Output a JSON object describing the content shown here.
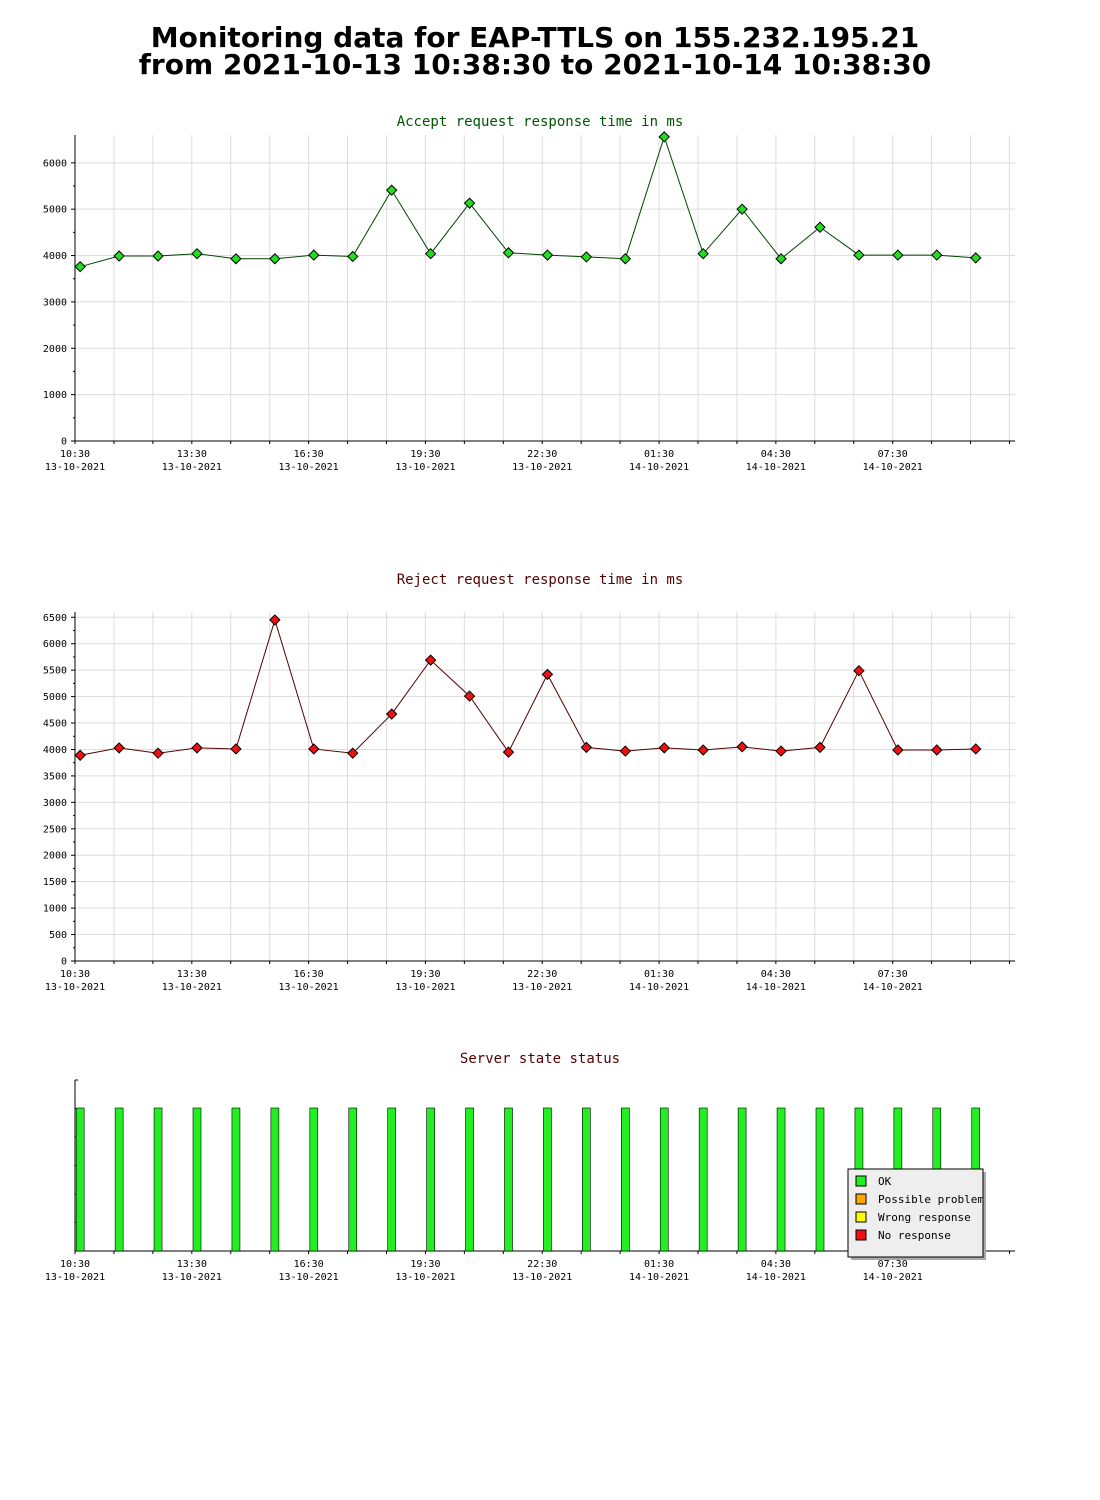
{
  "header": {
    "line1": "Monitoring data for EAP-TTLS on 155.232.195.21",
    "line2": "from 2021-10-13 10:38:30 to 2021-10-14 10:38:30"
  },
  "x_ticks": [
    {
      "time": "10:30",
      "date": "13-10-2021"
    },
    {
      "time": "13:30",
      "date": "13-10-2021"
    },
    {
      "time": "16:30",
      "date": "13-10-2021"
    },
    {
      "time": "19:30",
      "date": "13-10-2021"
    },
    {
      "time": "22:30",
      "date": "13-10-2021"
    },
    {
      "time": "01:30",
      "date": "14-10-2021"
    },
    {
      "time": "04:30",
      "date": "14-10-2021"
    },
    {
      "time": "07:30",
      "date": "14-10-2021"
    }
  ],
  "chart_data": [
    {
      "type": "line",
      "title": "Accept request response time in ms",
      "title_color": "#005500",
      "line_color": "#004400",
      "marker_color": "#22dd22",
      "x": [
        "2021-10-13 10:38",
        "2021-10-13 11:38",
        "2021-10-13 12:38",
        "2021-10-13 13:38",
        "2021-10-13 14:38",
        "2021-10-13 15:38",
        "2021-10-13 16:38",
        "2021-10-13 17:38",
        "2021-10-13 18:38",
        "2021-10-13 19:38",
        "2021-10-13 20:38",
        "2021-10-13 21:38",
        "2021-10-13 22:38",
        "2021-10-13 23:38",
        "2021-10-14 00:38",
        "2021-10-14 01:38",
        "2021-10-14 02:38",
        "2021-10-14 03:38",
        "2021-10-14 04:38",
        "2021-10-14 05:38",
        "2021-10-14 06:38",
        "2021-10-14 07:38",
        "2021-10-14 08:38",
        "2021-10-14 09:38"
      ],
      "values": [
        3760,
        3990,
        3990,
        4040,
        3930,
        3930,
        4010,
        3980,
        5410,
        4040,
        5130,
        4060,
        4010,
        3970,
        3930,
        6560,
        4040,
        5000,
        3930,
        4610,
        4010,
        4010,
        4010,
        3950
      ],
      "ylim": [
        0,
        6600
      ],
      "yticks": [
        0,
        1000,
        2000,
        3000,
        4000,
        5000,
        6000
      ],
      "grid": true
    },
    {
      "type": "line",
      "title": "Reject request response time in ms",
      "title_color": "#550000",
      "line_color": "#550000",
      "marker_color": "#ee1111",
      "x": [
        "2021-10-13 10:38",
        "2021-10-13 11:38",
        "2021-10-13 12:38",
        "2021-10-13 13:38",
        "2021-10-13 14:38",
        "2021-10-13 15:38",
        "2021-10-13 16:38",
        "2021-10-13 17:38",
        "2021-10-13 18:38",
        "2021-10-13 19:38",
        "2021-10-13 20:38",
        "2021-10-13 21:38",
        "2021-10-13 22:38",
        "2021-10-13 23:38",
        "2021-10-14 00:38",
        "2021-10-14 01:38",
        "2021-10-14 02:38",
        "2021-10-14 03:38",
        "2021-10-14 04:38",
        "2021-10-14 05:38",
        "2021-10-14 06:38",
        "2021-10-14 07:38",
        "2021-10-14 08:38",
        "2021-10-14 09:38"
      ],
      "values": [
        3890,
        4030,
        3930,
        4030,
        4010,
        6450,
        4010,
        3930,
        4670,
        5690,
        5010,
        3950,
        5420,
        4040,
        3970,
        4030,
        3990,
        4050,
        3970,
        4040,
        5490,
        3990,
        3990,
        4010
      ],
      "ylim": [
        0,
        6600
      ],
      "yticks": [
        0,
        500,
        1000,
        1500,
        2000,
        2500,
        3000,
        3500,
        4000,
        4500,
        5000,
        5500,
        6000,
        6500
      ],
      "grid": true
    },
    {
      "type": "bar",
      "title": "Server state status",
      "title_color": "#550000",
      "x": [
        "2021-10-13 10:38",
        "2021-10-13 11:38",
        "2021-10-13 12:38",
        "2021-10-13 13:38",
        "2021-10-13 14:38",
        "2021-10-13 15:38",
        "2021-10-13 16:38",
        "2021-10-13 17:38",
        "2021-10-13 18:38",
        "2021-10-13 19:38",
        "2021-10-13 20:38",
        "2021-10-13 21:38",
        "2021-10-13 22:38",
        "2021-10-13 23:38",
        "2021-10-14 00:38",
        "2021-10-14 01:38",
        "2021-10-14 02:38",
        "2021-10-14 03:38",
        "2021-10-14 04:38",
        "2021-10-14 05:38",
        "2021-10-14 06:38",
        "2021-10-14 07:38",
        "2021-10-14 08:38",
        "2021-10-14 09:38"
      ],
      "states": [
        "OK",
        "OK",
        "OK",
        "OK",
        "OK",
        "OK",
        "OK",
        "OK",
        "OK",
        "OK",
        "OK",
        "OK",
        "OK",
        "OK",
        "OK",
        "OK",
        "OK",
        "OK",
        "OK",
        "OK",
        "OK",
        "OK",
        "OK",
        "OK"
      ],
      "legend": [
        {
          "label": "OK",
          "color": "#22ee22"
        },
        {
          "label": "Possible problem",
          "color": "#ffa500"
        },
        {
          "label": "Wrong response",
          "color": "#ffff00"
        },
        {
          "label": "No response",
          "color": "#ee1111"
        }
      ],
      "legend_position": "bottom-right",
      "grid": false
    }
  ]
}
